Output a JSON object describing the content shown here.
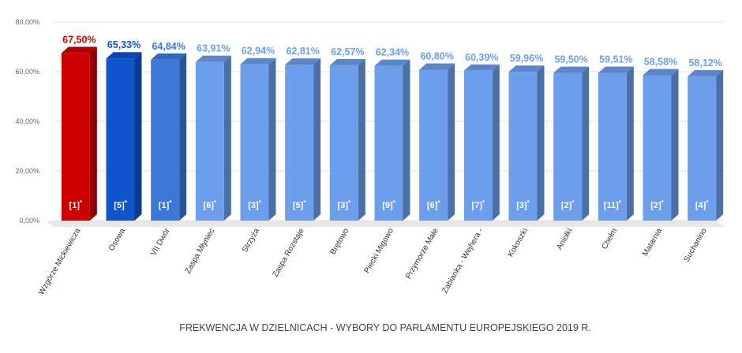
{
  "chart_data": {
    "type": "bar",
    "title": "FREKWENCJA W DZIELNICACH - WYBORY DO PARLAMENTU EUROPEJSKIEGO 2019 R.",
    "ylim": [
      0,
      80
    ],
    "yticks": [
      "0,00%",
      "20,00%",
      "40,00%",
      "60,00%",
      "80,00%"
    ],
    "grid": true,
    "categories": [
      "Wzgórze Mickiewicza",
      "Osowa",
      "VII Dwór",
      "Zaspa Młyniec",
      "Strzyża",
      "Zaspa Rozstaje",
      "Brętowo",
      "Piecki Migowo",
      "Przymorze Małe",
      "Żabianka - Wejhera -",
      "Kokoszki",
      "Aniołki",
      "Chełm",
      "Matarnia",
      "Suchanino"
    ],
    "values": [
      67.5,
      65.33,
      64.84,
      63.91,
      62.94,
      62.81,
      62.57,
      62.34,
      60.8,
      60.39,
      59.96,
      59.5,
      59.51,
      58.58,
      58.12
    ],
    "value_labels": [
      "67,50%",
      "65,33%",
      "64,84%",
      "63,91%",
      "62,94%",
      "62,81%",
      "62,57%",
      "62,34%",
      "60,80%",
      "60,39%",
      "59,96%",
      "59,50%",
      "59,51%",
      "58,58%",
      "58,12%"
    ],
    "bar_labels": [
      "[1]",
      "[5]",
      "[1]",
      "[6]",
      "[3]",
      "[5]",
      "[3]",
      "[9]",
      "[6]",
      "[7]",
      "[3]",
      "[2]",
      "[11]",
      "[2]",
      "[4]"
    ],
    "bar_label_suffix": "*",
    "bar_colors": [
      "#cc0000",
      "#1155cc",
      "#3c78d8",
      "#6d9eeb",
      "#6d9eeb",
      "#6d9eeb",
      "#6d9eeb",
      "#6d9eeb",
      "#6d9eeb",
      "#6d9eeb",
      "#6d9eeb",
      "#6d9eeb",
      "#6d9eeb",
      "#6d9eeb",
      "#6d9eeb"
    ],
    "label_colors": [
      "#cc0000",
      "#1155cc",
      "#3c78d8",
      "#6d9eeb",
      "#6d9eeb",
      "#6d9eeb",
      "#6d9eeb",
      "#6d9eeb",
      "#6d9eeb",
      "#6d9eeb",
      "#6d9eeb",
      "#6d9eeb",
      "#6d9eeb",
      "#6d9eeb",
      "#6d9eeb"
    ]
  }
}
